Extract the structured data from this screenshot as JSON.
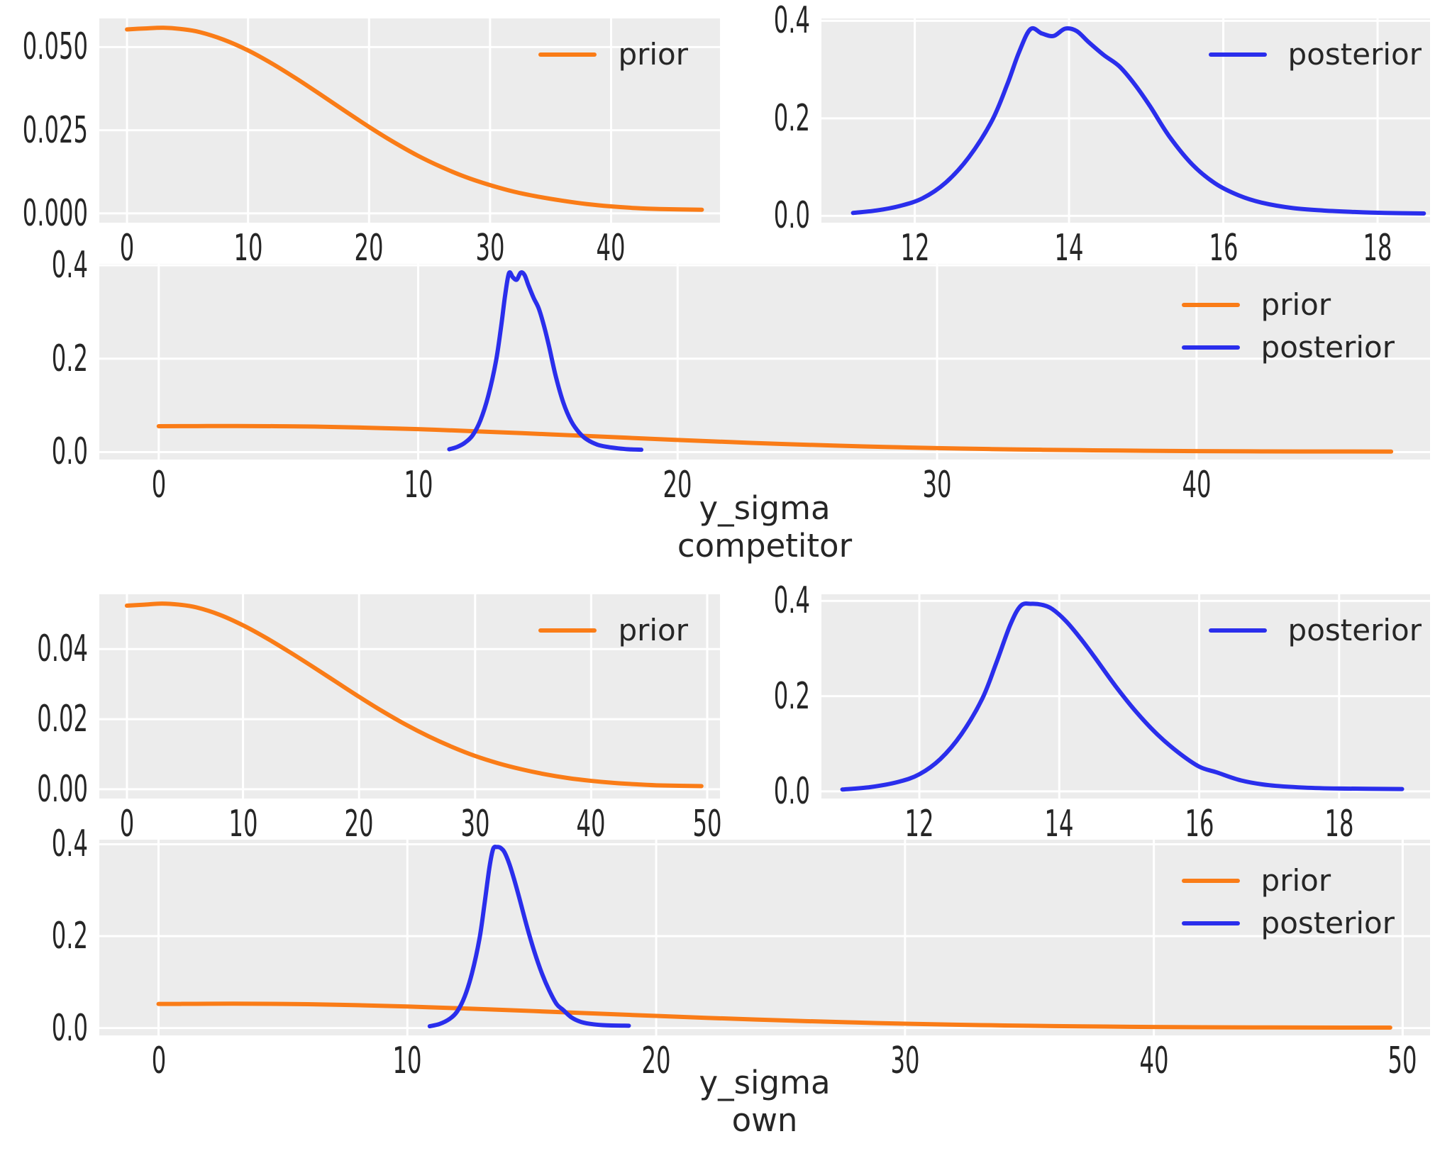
{
  "figure": {
    "background": "#ffffff",
    "panel_background": "#ececec",
    "grid_color": "#ffffff",
    "text_color": "#262626",
    "prior_color": "#fa7c17",
    "posterior_color": "#2a2eec"
  },
  "labels": {
    "competitor": {
      "line1": "y_sigma",
      "line2": "competitor"
    },
    "own": {
      "line1": "y_sigma",
      "line2": "own"
    }
  },
  "chart_data": [
    {
      "id": "competitor-prior",
      "type": "line",
      "title": "",
      "xlabel": "",
      "ylabel": "",
      "xlim": [
        -2.29,
        49.0
      ],
      "ylim": [
        -0.0028,
        0.0586
      ],
      "xticks": [
        0,
        10,
        20,
        30,
        40
      ],
      "xtick_labels": [
        "0",
        "10",
        "20",
        "30",
        "40"
      ],
      "yticks": [
        0.0,
        0.025,
        0.05
      ],
      "ytick_labels": [
        "0.000",
        "0.025",
        "0.050"
      ],
      "legend_position": "upper right",
      "grid": true,
      "series": [
        {
          "name": "prior",
          "color": "#fa7c17",
          "x": [
            0,
            1.5,
            3,
            4.5,
            6,
            8,
            10,
            12,
            14,
            16,
            18,
            20,
            22,
            24,
            26,
            28,
            30,
            32,
            34,
            36,
            38,
            40,
            42,
            44,
            47.5
          ],
          "y": [
            0.0553,
            0.0556,
            0.0558,
            0.0554,
            0.0545,
            0.0522,
            0.049,
            0.045,
            0.0405,
            0.0357,
            0.0308,
            0.026,
            0.0215,
            0.0174,
            0.0139,
            0.0109,
            0.0085,
            0.0065,
            0.005,
            0.0038,
            0.0028,
            0.0021,
            0.0016,
            0.0013,
            0.0011
          ]
        }
      ]
    },
    {
      "id": "competitor-posterior",
      "type": "line",
      "title": "",
      "xlabel": "",
      "ylabel": "",
      "xlim": [
        10.79,
        18.68
      ],
      "ylim": [
        -0.014,
        0.405
      ],
      "xticks": [
        12,
        14,
        16,
        18
      ],
      "xtick_labels": [
        "12",
        "14",
        "16",
        "18"
      ],
      "yticks": [
        0.0,
        0.2,
        0.4
      ],
      "ytick_labels": [
        "0.0",
        "0.2",
        "0.4"
      ],
      "legend_position": "upper right",
      "grid": true,
      "series": [
        {
          "name": "posterior",
          "color": "#2a2eec",
          "x": [
            11.2,
            11.5,
            11.8,
            12.1,
            12.4,
            12.7,
            13.0,
            13.2,
            13.35,
            13.5,
            13.65,
            13.8,
            13.95,
            14.1,
            14.25,
            14.45,
            14.65,
            14.85,
            15.05,
            15.3,
            15.6,
            15.9,
            16.2,
            16.5,
            16.9,
            17.3,
            17.7,
            18.1,
            18.6
          ],
          "y": [
            0.006,
            0.011,
            0.02,
            0.036,
            0.068,
            0.12,
            0.195,
            0.27,
            0.335,
            0.383,
            0.374,
            0.369,
            0.384,
            0.379,
            0.357,
            0.33,
            0.307,
            0.27,
            0.225,
            0.163,
            0.105,
            0.066,
            0.042,
            0.027,
            0.016,
            0.011,
            0.008,
            0.006,
            0.005
          ]
        }
      ]
    },
    {
      "id": "competitor-combined",
      "type": "line",
      "title": "",
      "xlabel": "y_sigma competitor",
      "ylabel": "",
      "xlim": [
        -2.29,
        49.0
      ],
      "ylim": [
        -0.016,
        0.403
      ],
      "xticks": [
        0,
        10,
        20,
        30,
        40
      ],
      "xtick_labels": [
        "0",
        "10",
        "20",
        "30",
        "40"
      ],
      "yticks": [
        0.0,
        0.2,
        0.4
      ],
      "ytick_labels": [
        "0.0",
        "0.2",
        "0.4"
      ],
      "legend_position": "upper right",
      "grid": true,
      "series": [
        {
          "name": "prior",
          "color": "#fa7c17",
          "x": [
            0,
            1.5,
            3,
            4.5,
            6,
            8,
            10,
            12,
            14,
            16,
            18,
            20,
            22,
            24,
            26,
            28,
            30,
            32,
            34,
            36,
            38,
            40,
            42,
            44,
            47.5
          ],
          "y": [
            0.0553,
            0.0556,
            0.0558,
            0.0554,
            0.0545,
            0.0522,
            0.049,
            0.045,
            0.0405,
            0.0357,
            0.0308,
            0.026,
            0.0215,
            0.0174,
            0.0139,
            0.0109,
            0.0085,
            0.0065,
            0.005,
            0.0038,
            0.0028,
            0.0021,
            0.0016,
            0.0013,
            0.0011
          ]
        },
        {
          "name": "posterior",
          "color": "#2a2eec",
          "x": [
            11.2,
            11.5,
            11.8,
            12.1,
            12.4,
            12.7,
            13.0,
            13.2,
            13.35,
            13.5,
            13.65,
            13.8,
            13.95,
            14.1,
            14.25,
            14.45,
            14.65,
            14.85,
            15.05,
            15.3,
            15.6,
            15.9,
            16.2,
            16.5,
            16.9,
            17.3,
            17.7,
            18.1,
            18.6
          ],
          "y": [
            0.006,
            0.011,
            0.02,
            0.036,
            0.068,
            0.12,
            0.195,
            0.27,
            0.335,
            0.383,
            0.374,
            0.369,
            0.384,
            0.379,
            0.357,
            0.33,
            0.307,
            0.27,
            0.225,
            0.163,
            0.105,
            0.066,
            0.042,
            0.027,
            0.016,
            0.011,
            0.008,
            0.006,
            0.005
          ]
        }
      ]
    },
    {
      "id": "own-prior",
      "type": "line",
      "title": "",
      "xlabel": "",
      "ylabel": "",
      "xlim": [
        -2.38,
        51.1
      ],
      "ylim": [
        -0.00265,
        0.05565
      ],
      "xticks": [
        0,
        10,
        20,
        30,
        40,
        50
      ],
      "xtick_labels": [
        "0",
        "10",
        "20",
        "30",
        "40",
        "50"
      ],
      "yticks": [
        0.0,
        0.02,
        0.04
      ],
      "ytick_labels": [
        "0.00",
        "0.02",
        "0.04"
      ],
      "legend_position": "upper right",
      "grid": true,
      "series": [
        {
          "name": "prior",
          "color": "#fa7c17",
          "x": [
            0,
            1.5,
            3,
            4.5,
            6,
            8,
            10,
            12,
            14,
            16,
            18,
            20,
            22,
            24,
            26,
            28,
            30,
            32,
            34,
            36,
            38,
            40,
            42,
            44,
            46,
            49.5
          ],
          "y": [
            0.0524,
            0.0527,
            0.053,
            0.0527,
            0.0519,
            0.0498,
            0.0468,
            0.0432,
            0.0392,
            0.035,
            0.0307,
            0.0264,
            0.0223,
            0.0185,
            0.0151,
            0.0121,
            0.0095,
            0.0074,
            0.0057,
            0.0043,
            0.0032,
            0.0024,
            0.0018,
            0.0014,
            0.0011,
            0.0009
          ]
        }
      ]
    },
    {
      "id": "own-posterior",
      "type": "line",
      "title": "",
      "xlabel": "",
      "ylabel": "",
      "xlim": [
        10.6,
        19.3
      ],
      "ylim": [
        -0.015,
        0.414
      ],
      "xticks": [
        12,
        14,
        16,
        18
      ],
      "xtick_labels": [
        "12",
        "14",
        "16",
        "18"
      ],
      "yticks": [
        0.0,
        0.2,
        0.4
      ],
      "ytick_labels": [
        "0.0",
        "0.2",
        "0.4"
      ],
      "legend_position": "upper right",
      "grid": true,
      "series": [
        {
          "name": "posterior",
          "color": "#2a2eec",
          "x": [
            10.9,
            11.3,
            11.7,
            12.0,
            12.3,
            12.6,
            12.9,
            13.1,
            13.3,
            13.45,
            13.6,
            13.75,
            13.9,
            14.1,
            14.3,
            14.5,
            14.8,
            15.1,
            15.4,
            15.7,
            16.0,
            16.25,
            16.6,
            17.0,
            17.5,
            18.0,
            18.9
          ],
          "y": [
            0.004,
            0.009,
            0.02,
            0.036,
            0.068,
            0.12,
            0.195,
            0.27,
            0.35,
            0.39,
            0.394,
            0.392,
            0.383,
            0.357,
            0.322,
            0.283,
            0.222,
            0.167,
            0.12,
            0.082,
            0.052,
            0.04,
            0.023,
            0.013,
            0.008,
            0.006,
            0.005
          ]
        }
      ]
    },
    {
      "id": "own-combined",
      "type": "line",
      "title": "",
      "xlabel": "y_sigma own",
      "ylabel": "",
      "xlim": [
        -2.38,
        51.1
      ],
      "ylim": [
        -0.016,
        0.41
      ],
      "xticks": [
        0,
        10,
        20,
        30,
        40,
        50
      ],
      "xtick_labels": [
        "0",
        "10",
        "20",
        "30",
        "40",
        "50"
      ],
      "yticks": [
        0.0,
        0.2,
        0.4
      ],
      "ytick_labels": [
        "0.0",
        "0.2",
        "0.4"
      ],
      "legend_position": "upper right",
      "grid": true,
      "series": [
        {
          "name": "prior",
          "color": "#fa7c17",
          "x": [
            0,
            1.5,
            3,
            4.5,
            6,
            8,
            10,
            12,
            14,
            16,
            18,
            20,
            22,
            24,
            26,
            28,
            30,
            32,
            34,
            36,
            38,
            40,
            42,
            44,
            46,
            49.5
          ],
          "y": [
            0.0524,
            0.0527,
            0.053,
            0.0527,
            0.0519,
            0.0498,
            0.0468,
            0.0432,
            0.0392,
            0.035,
            0.0307,
            0.0264,
            0.0223,
            0.0185,
            0.0151,
            0.0121,
            0.0095,
            0.0074,
            0.0057,
            0.0043,
            0.0032,
            0.0024,
            0.0018,
            0.0014,
            0.0011,
            0.0009
          ]
        },
        {
          "name": "posterior",
          "color": "#2a2eec",
          "x": [
            10.9,
            11.3,
            11.7,
            12.0,
            12.3,
            12.6,
            12.9,
            13.1,
            13.3,
            13.45,
            13.6,
            13.75,
            13.9,
            14.1,
            14.3,
            14.5,
            14.8,
            15.1,
            15.4,
            15.7,
            16.0,
            16.25,
            16.6,
            17.0,
            17.5,
            18.0,
            18.9
          ],
          "y": [
            0.004,
            0.009,
            0.02,
            0.036,
            0.068,
            0.12,
            0.195,
            0.27,
            0.35,
            0.39,
            0.394,
            0.392,
            0.383,
            0.357,
            0.322,
            0.283,
            0.222,
            0.167,
            0.12,
            0.082,
            0.052,
            0.04,
            0.023,
            0.013,
            0.008,
            0.006,
            0.005
          ]
        }
      ]
    }
  ]
}
